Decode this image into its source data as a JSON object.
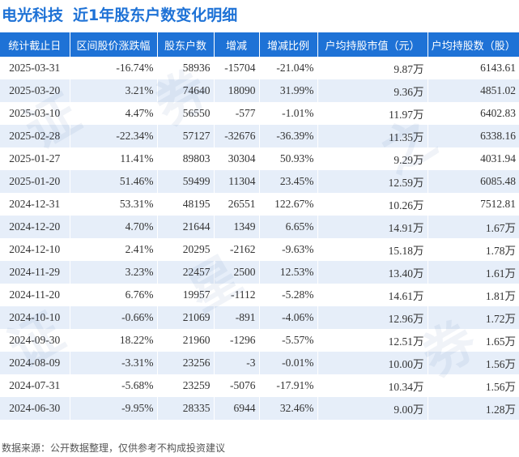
{
  "title": {
    "stock_name": "电光科技",
    "subtitle": "近1年股东户数变化明细"
  },
  "table": {
    "headers": [
      "统计截止日",
      "区间股价涨跌幅",
      "股东户数",
      "增减",
      "增减比例",
      "户均持股市值（元）",
      "户均持股数（股）"
    ],
    "rows": [
      [
        "2025-03-31",
        "-16.74%",
        "58936",
        "-15704",
        "-21.04%",
        "9.87万",
        "6143.61"
      ],
      [
        "2025-03-20",
        "3.21%",
        "74640",
        "18090",
        "31.99%",
        "9.36万",
        "4851.02"
      ],
      [
        "2025-03-10",
        "4.47%",
        "56550",
        "-577",
        "-1.01%",
        "11.97万",
        "6402.83"
      ],
      [
        "2025-02-28",
        "-22.34%",
        "57127",
        "-32676",
        "-36.39%",
        "11.35万",
        "6338.16"
      ],
      [
        "2025-01-27",
        "11.41%",
        "89803",
        "30304",
        "50.93%",
        "9.29万",
        "4031.94"
      ],
      [
        "2025-01-20",
        "51.46%",
        "59499",
        "11304",
        "23.45%",
        "12.59万",
        "6085.48"
      ],
      [
        "2024-12-31",
        "53.31%",
        "48195",
        "26551",
        "122.67%",
        "10.26万",
        "7512.81"
      ],
      [
        "2024-12-20",
        "4.70%",
        "21644",
        "1349",
        "6.65%",
        "14.91万",
        "1.67万"
      ],
      [
        "2024-12-10",
        "2.41%",
        "20295",
        "-2162",
        "-9.63%",
        "15.18万",
        "1.78万"
      ],
      [
        "2024-11-29",
        "3.23%",
        "22457",
        "2500",
        "12.53%",
        "13.40万",
        "1.61万"
      ],
      [
        "2024-11-20",
        "6.76%",
        "19957",
        "-1112",
        "-5.28%",
        "14.61万",
        "1.81万"
      ],
      [
        "2024-10-10",
        "-0.66%",
        "21069",
        "-891",
        "-4.06%",
        "12.96万",
        "1.72万"
      ],
      [
        "2024-09-30",
        "18.22%",
        "21960",
        "-1296",
        "-5.57%",
        "12.51万",
        "1.65万"
      ],
      [
        "2024-08-09",
        "-3.31%",
        "23256",
        "-3",
        "-0.01%",
        "10.00万",
        "1.56万"
      ],
      [
        "2024-07-31",
        "-5.68%",
        "23259",
        "-5076",
        "-17.91%",
        "10.34万",
        "1.56万"
      ],
      [
        "2024-06-30",
        "-9.95%",
        "28335",
        "6944",
        "32.46%",
        "9.00万",
        "1.28万"
      ]
    ]
  },
  "colors": {
    "header_bg": "#1e72d6",
    "title": "#1e72d6",
    "stripe": "#e6eef9",
    "positive": "#e02020",
    "negative": "#1f9a2e"
  },
  "watermark": [
    "证",
    "券",
    "之",
    "星"
  ],
  "footer": "数据来源：公开数据整理，仅供参考不构成投资建议"
}
